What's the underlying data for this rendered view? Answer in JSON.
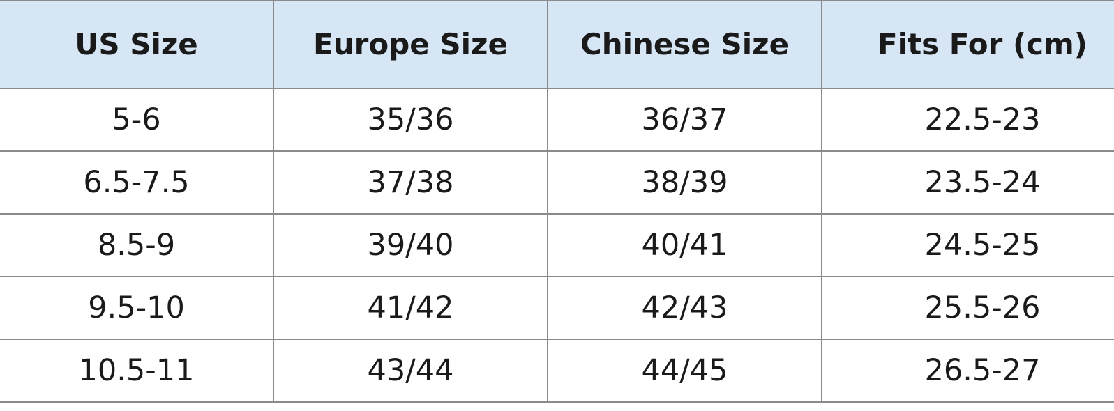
{
  "table": {
    "columns": [
      "US Size",
      "Europe Size",
      "Chinese Size",
      "Fits For (cm)"
    ],
    "rows": [
      [
        "5-6",
        "35/36",
        "36/37",
        "22.5-23"
      ],
      [
        "6.5-7.5",
        "37/38",
        "38/39",
        "23.5-24"
      ],
      [
        "8.5-9",
        "39/40",
        "40/41",
        "24.5-25"
      ],
      [
        "9.5-10",
        "41/42",
        "42/43",
        "25.5-26"
      ],
      [
        "10.5-11",
        "43/44",
        "44/45",
        "26.5-27"
      ]
    ]
  }
}
